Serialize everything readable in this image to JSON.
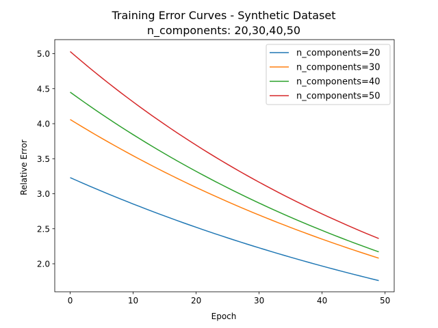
{
  "chart_data": {
    "type": "line",
    "title": "Training Error Curves - Synthetic Dataset",
    "subtitle": "n_components: 20,30,40,50",
    "xlabel": "Epoch",
    "ylabel": "Relative Error",
    "xlim": [
      -2.45,
      51.45
    ],
    "ylim": [
      1.6,
      5.2
    ],
    "xticks": [
      0,
      10,
      20,
      30,
      40,
      50
    ],
    "yticks": [
      2.0,
      2.5,
      3.0,
      3.5,
      4.0,
      4.5,
      5.0
    ],
    "grid": false,
    "legend_position": "upper right",
    "series": [
      {
        "name": "n_components=20",
        "color": "#1f77b4",
        "start": 3.23,
        "end": 1.76
      },
      {
        "name": "n_components=30",
        "color": "#ff7f0e",
        "start": 4.06,
        "end": 2.08
      },
      {
        "name": "n_components=40",
        "color": "#2ca02c",
        "start": 4.45,
        "end": 2.17
      },
      {
        "name": "n_components=50",
        "color": "#d62728",
        "start": 5.03,
        "end": 2.36
      }
    ],
    "epochs": 50
  }
}
